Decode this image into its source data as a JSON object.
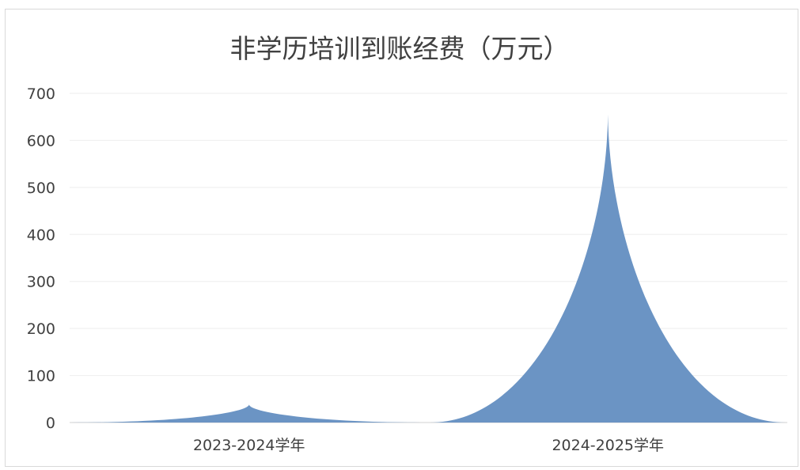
{
  "chart_data": {
    "type": "area",
    "title": "非学历培训到账经费（万元）",
    "categories": [
      "2023-2024学年",
      "2024-2025学年"
    ],
    "series": [
      {
        "values": [
          38,
          655
        ]
      }
    ],
    "ylim": [
      0,
      700
    ],
    "yticks": [
      0,
      100,
      200,
      300,
      400,
      500,
      600,
      700
    ],
    "grid": true,
    "legend": "none",
    "color": "#6b94c4"
  }
}
